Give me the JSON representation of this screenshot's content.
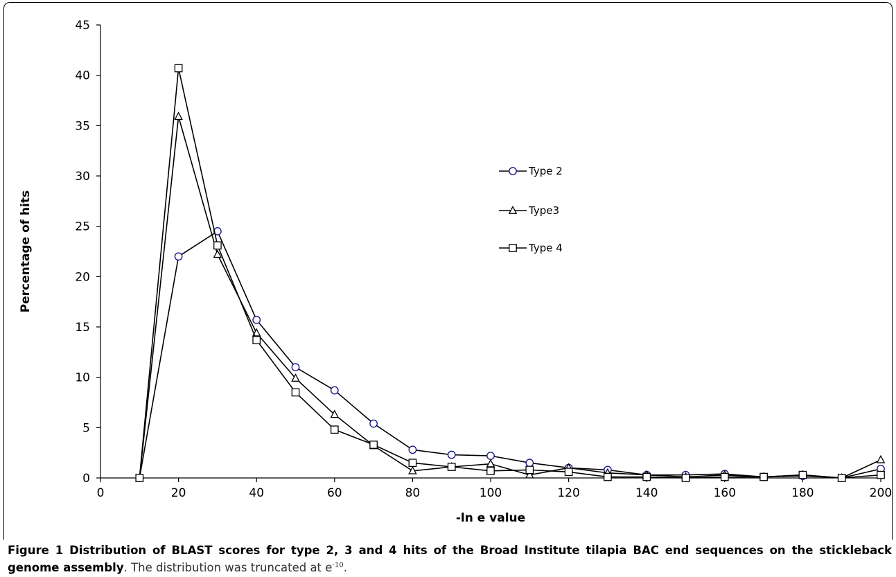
{
  "chart_data": {
    "type": "line",
    "xlabel": "-ln e value",
    "ylabel": "Percentage of hits",
    "xlim": [
      0,
      200
    ],
    "ylim": [
      0,
      45
    ],
    "xticks": [
      0,
      20,
      40,
      60,
      80,
      100,
      120,
      140,
      160,
      180,
      200
    ],
    "yticks": [
      0,
      5,
      10,
      15,
      20,
      25,
      30,
      35,
      40,
      45
    ],
    "grid": false,
    "legend_position": "right-center",
    "x": [
      10,
      20,
      30,
      40,
      50,
      60,
      70,
      80,
      90,
      100,
      110,
      120,
      130,
      140,
      150,
      160,
      170,
      180,
      190,
      200
    ],
    "series": [
      {
        "name": "Type 2",
        "marker": "circle",
        "color": "#1a1a8c",
        "values": [
          0,
          22.0,
          24.5,
          15.7,
          11.0,
          8.7,
          5.4,
          2.8,
          2.3,
          2.2,
          1.5,
          1.0,
          0.8,
          0.3,
          0.3,
          0.4,
          0.1,
          0.2,
          0,
          0.9
        ]
      },
      {
        "name": "Type3",
        "marker": "triangle",
        "color": "#000000",
        "values": [
          0,
          35.9,
          22.2,
          14.4,
          9.9,
          6.3,
          3.2,
          0.7,
          1.1,
          1.4,
          0.3,
          1.0,
          0.5,
          0.3,
          0.1,
          0.3,
          0.1,
          0.3,
          0,
          1.8
        ]
      },
      {
        "name": "Type 4",
        "marker": "square",
        "color": "#000000",
        "values": [
          0,
          40.7,
          23.1,
          13.7,
          8.5,
          4.8,
          3.3,
          1.5,
          1.1,
          0.7,
          0.8,
          0.6,
          0.1,
          0.1,
          0,
          0.1,
          0.1,
          0.3,
          0,
          0.3
        ]
      }
    ]
  },
  "caption": {
    "lead": "Figure 1 Distribution of BLAST scores for type 2, 3 and 4 hits of the Broad Institute tilapia BAC end sequences on the stickleback genome assembly",
    "tail_before": ". The distribution was truncated at e",
    "tail_sup": "-10",
    "tail_after": "."
  }
}
